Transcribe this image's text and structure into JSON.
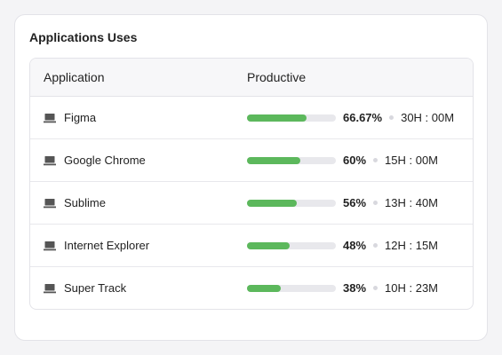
{
  "card": {
    "title": "Applications Uses"
  },
  "table": {
    "columns": [
      "Application",
      "Productive"
    ],
    "rows": [
      {
        "name": "Figma",
        "productive": {
          "value": 66.67,
          "label": "66.67%"
        },
        "time": "30H : 00M"
      },
      {
        "name": "Google Chrome",
        "productive": {
          "value": 60,
          "label": "60%"
        },
        "time": "15H : 00M"
      },
      {
        "name": "Sublime",
        "productive": {
          "value": 56,
          "label": "56%"
        },
        "time": "13H : 40M"
      },
      {
        "name": "Internet Explorer",
        "productive": {
          "value": 48,
          "label": "48%"
        },
        "time": "12H : 15M"
      },
      {
        "name": "Super Track",
        "productive": {
          "value": 38,
          "label": "38%"
        },
        "time": "10H : 23M"
      }
    ],
    "bar_color": "#5cb85c",
    "track_color": "#e8e8ec"
  }
}
